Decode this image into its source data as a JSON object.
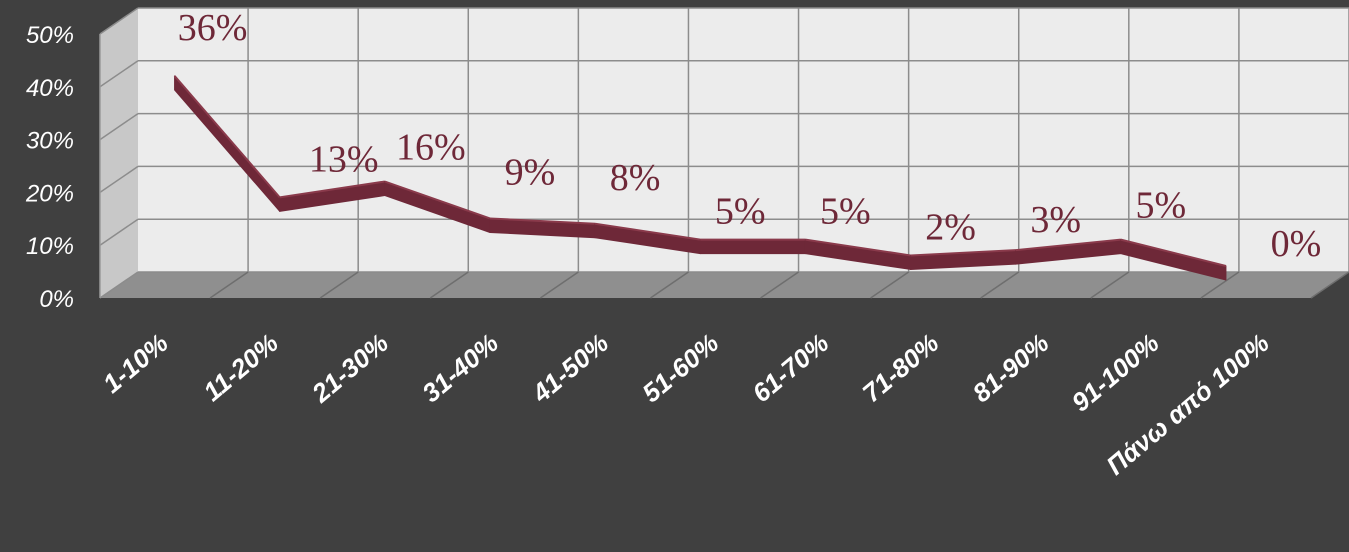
{
  "chart_data": {
    "type": "line",
    "categories": [
      "1-10%",
      "11-20%",
      "21-30%",
      "31-40%",
      "41-50%",
      "51-60%",
      "61-70%",
      "71-80%",
      "81-90%",
      "91-100%",
      "Πάνω από 100%"
    ],
    "series": [
      {
        "values": [
          36,
          13,
          16,
          9,
          8,
          5,
          5,
          2,
          3,
          5,
          0
        ]
      }
    ],
    "data_labels": [
      "36%",
      "13%",
      "16%",
      "9%",
      "8%",
      "5%",
      "5%",
      "2%",
      "3%",
      "5%",
      "0%"
    ],
    "yticks": [
      "0%",
      "10%",
      "20%",
      "30%",
      "40%",
      "50%"
    ],
    "ylim": [
      0,
      50
    ],
    "grid": true,
    "style": "3d",
    "colors": {
      "background": "#404040",
      "plot_wall": "#ececec",
      "side_wall": "#c8c8c8",
      "floor": "#8f8f8f",
      "grid": "#8c8c8c",
      "line": "#6e2838",
      "line_top": "#8a3a4b",
      "label": "#6e2838",
      "tick": "#ffffff"
    }
  }
}
